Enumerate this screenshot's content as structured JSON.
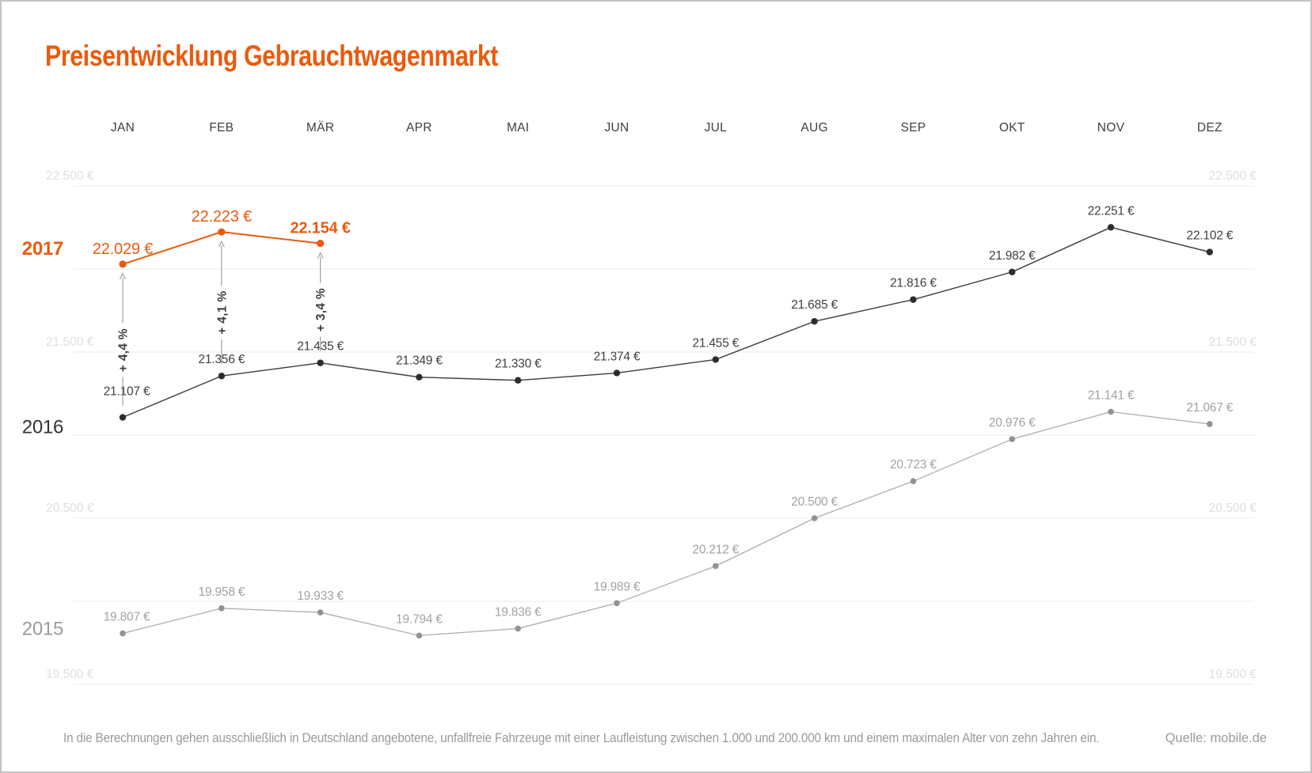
{
  "title": "Preisentwicklung Gebrauchtwagenmarkt",
  "footer": {
    "note": "In die Berechnungen gehen ausschließlich in Deutschland angebotene, unfallfreie Fahrzeuge mit einer Laufleistung zwischen 1.000 und 200.000 km und einem maximalen Alter von zehn Jahren ein.",
    "source": "Quelle: mobile.de"
  },
  "colors": {
    "accent_orange": "#ea5a0e",
    "dark_line": "#3b3b3b",
    "dark_dot": "#2d2d2d",
    "dark_label": "#3f3f3f",
    "gray_line": "#adadad",
    "gray_dot": "#929292",
    "gray_label": "#a2a2a2",
    "year_2016": "#333333",
    "year_2015": "#9b9b9b",
    "grid": "#e9e9e9",
    "tick_label": "#dedede",
    "month_label": "#3f3f3f",
    "arrow": "#9a9a9a",
    "annotation_text": "#3e3e3e"
  },
  "chart_data": {
    "type": "line",
    "categories": [
      "JAN",
      "FEB",
      "MÄR",
      "APR",
      "MAI",
      "JUN",
      "JUL",
      "AUG",
      "SEP",
      "OKT",
      "NOV",
      "DEZ"
    ],
    "y_axis": {
      "tick_labels": [
        "22.500 €",
        "21.500 €",
        "20.500 €",
        "19.500 €"
      ],
      "tick_values": [
        22500,
        21500,
        20500,
        19500
      ],
      "gridline_values": [
        22500,
        22000,
        21500,
        21000,
        20500,
        20000,
        19500
      ],
      "ylim": [
        19350,
        22750
      ],
      "label_sides": "both",
      "grid": true
    },
    "series": [
      {
        "name": "2015",
        "values": [
          19807,
          19958,
          19933,
          19794,
          19836,
          19989,
          20212,
          20500,
          20723,
          20976,
          21141,
          21067
        ],
        "labels": [
          "19.807 €",
          "19.958 €",
          "19.933 €",
          "19.794 €",
          "19.836 €",
          "19.989 €",
          "20.212 €",
          "20.500 €",
          "20.723 €",
          "20.976 €",
          "21.141 €",
          "21.067 €"
        ]
      },
      {
        "name": "2016",
        "values": [
          21107,
          21356,
          21435,
          21349,
          21330,
          21374,
          21455,
          21685,
          21816,
          21982,
          22251,
          22102
        ],
        "labels": [
          "21.107 €",
          "21.356 €",
          "21.435 €",
          "21.349 €",
          "21.330 €",
          "21.374 €",
          "21.455 €",
          "21.685 €",
          "21.816 €",
          "21.982 €",
          "22.251 €",
          "22.102 €"
        ]
      },
      {
        "name": "2017",
        "values": [
          22029,
          22223,
          22154
        ],
        "labels": [
          "22.029 €",
          "22.223 €",
          "22.154 €"
        ],
        "emphasis_last": true
      }
    ],
    "annotations": [
      {
        "category": "JAN",
        "label": "+ 4,4 %"
      },
      {
        "category": "FEB",
        "label": "+ 4,1 %"
      },
      {
        "category": "MÄR",
        "label": "+ 3,4 %"
      }
    ],
    "legend_position": "left-of-lines"
  }
}
